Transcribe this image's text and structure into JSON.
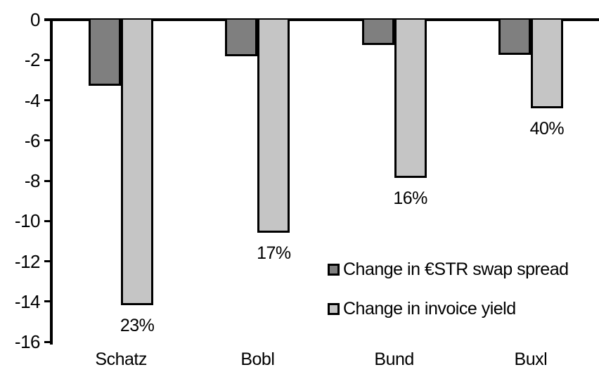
{
  "chart_data": {
    "type": "bar",
    "title": "",
    "categories": [
      "Schatz",
      "Bobl",
      "Bund",
      "Buxl"
    ],
    "series": [
      {
        "name": "Change in €STR swap spread",
        "color": "#7f7f7f",
        "values": [
          -3.3,
          -1.8,
          -1.25,
          -1.75
        ]
      },
      {
        "name": "Change in invoice yield",
        "color": "#c5c5c5",
        "values": [
          -14.2,
          -10.6,
          -7.85,
          -4.4
        ]
      }
    ],
    "bar_labels": {
      "series": "Change in invoice yield",
      "values": [
        "23%",
        "17%",
        "16%",
        "40%"
      ]
    },
    "ylim": [
      0,
      -16
    ],
    "yticks": [
      0,
      -2,
      -4,
      -6,
      -8,
      -10,
      -12,
      -14,
      -16
    ],
    "ytick_labels": [
      "0",
      "-2",
      "-4",
      "-6",
      "-8",
      "-10",
      "-12",
      "-14",
      "-16"
    ],
    "xlabel": "",
    "ylabel": "",
    "grid": false,
    "legend_position": "inside-right",
    "axis_color": "#000000",
    "background_color": "#ffffff"
  }
}
